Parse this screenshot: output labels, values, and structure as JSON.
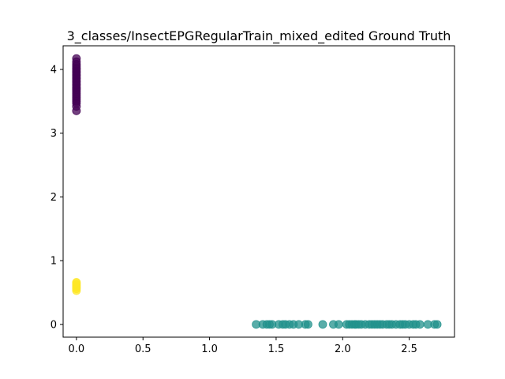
{
  "chart_data": {
    "type": "scatter",
    "title": "3_classes/InsectEPGRegularTrain_mixed_edited Ground Truth",
    "xlabel": "",
    "ylabel": "",
    "xlim": [
      -0.1,
      2.84
    ],
    "ylim": [
      -0.2,
      4.37
    ],
    "xticks": [
      "0.0",
      "0.5",
      "1.0",
      "1.5",
      "2.0",
      "2.5"
    ],
    "xtick_values": [
      0.0,
      0.5,
      1.0,
      1.5,
      2.0,
      2.5
    ],
    "yticks": [
      "0",
      "1",
      "2",
      "3",
      "4"
    ],
    "ytick_values": [
      0,
      1,
      2,
      3,
      4
    ],
    "grid": false,
    "series": [
      {
        "color": "#440154",
        "points": [
          [
            0,
            3.35
          ],
          [
            0,
            3.42
          ],
          [
            0,
            3.47
          ],
          [
            0,
            3.5
          ],
          [
            0,
            3.53
          ],
          [
            0,
            3.56
          ],
          [
            0,
            3.59
          ],
          [
            0,
            3.62
          ],
          [
            0,
            3.65
          ],
          [
            0,
            3.68
          ],
          [
            0,
            3.7
          ],
          [
            0,
            3.72
          ],
          [
            0,
            3.75
          ],
          [
            0,
            3.77
          ],
          [
            0,
            3.8
          ],
          [
            0,
            3.82
          ],
          [
            0,
            3.85
          ],
          [
            0,
            3.87
          ],
          [
            0,
            3.9
          ],
          [
            0,
            3.92
          ],
          [
            0,
            3.95
          ],
          [
            0,
            3.97
          ],
          [
            0,
            4.0
          ],
          [
            0,
            4.02
          ],
          [
            0,
            4.05
          ],
          [
            0,
            4.08
          ],
          [
            0,
            4.12
          ],
          [
            0,
            4.17
          ]
        ]
      },
      {
        "color": "#21918c",
        "points": [
          [
            1.35,
            0
          ],
          [
            1.4,
            0
          ],
          [
            1.43,
            0
          ],
          [
            1.45,
            0
          ],
          [
            1.47,
            0
          ],
          [
            1.52,
            0
          ],
          [
            1.55,
            0
          ],
          [
            1.57,
            0
          ],
          [
            1.6,
            0
          ],
          [
            1.63,
            0
          ],
          [
            1.67,
            0
          ],
          [
            1.72,
            0
          ],
          [
            1.74,
            0
          ],
          [
            1.85,
            0
          ],
          [
            1.93,
            0
          ],
          [
            1.97,
            0
          ],
          [
            2.03,
            0
          ],
          [
            2.05,
            0
          ],
          [
            2.07,
            0
          ],
          [
            2.09,
            0
          ],
          [
            2.1,
            0
          ],
          [
            2.12,
            0
          ],
          [
            2.14,
            0
          ],
          [
            2.17,
            0
          ],
          [
            2.2,
            0
          ],
          [
            2.22,
            0
          ],
          [
            2.24,
            0
          ],
          [
            2.26,
            0
          ],
          [
            2.28,
            0
          ],
          [
            2.3,
            0
          ],
          [
            2.33,
            0
          ],
          [
            2.35,
            0
          ],
          [
            2.37,
            0
          ],
          [
            2.4,
            0
          ],
          [
            2.43,
            0
          ],
          [
            2.45,
            0
          ],
          [
            2.47,
            0
          ],
          [
            2.5,
            0
          ],
          [
            2.53,
            0
          ],
          [
            2.55,
            0
          ],
          [
            2.58,
            0
          ],
          [
            2.64,
            0
          ],
          [
            2.69,
            0
          ],
          [
            2.71,
            0
          ]
        ]
      },
      {
        "color": "#fde725",
        "points": [
          [
            0,
            0.53
          ],
          [
            0,
            0.56
          ],
          [
            0,
            0.58
          ],
          [
            0,
            0.6
          ],
          [
            0,
            0.62
          ],
          [
            0,
            0.64
          ],
          [
            0,
            0.66
          ]
        ]
      }
    ]
  }
}
